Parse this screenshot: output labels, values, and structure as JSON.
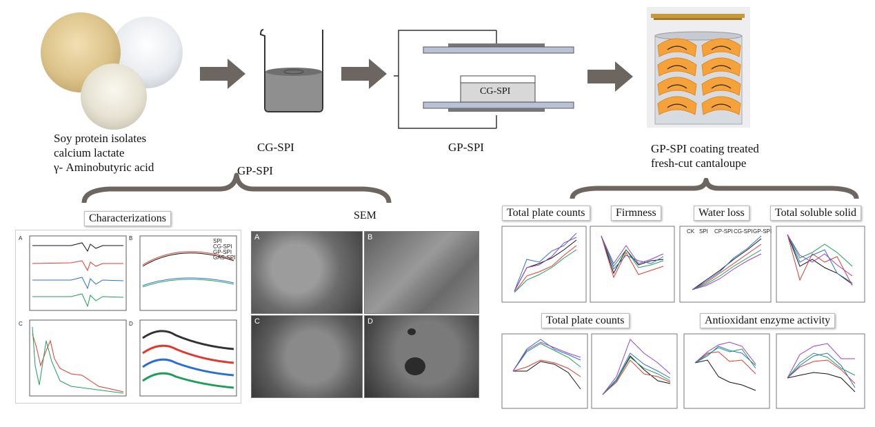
{
  "stage1": {
    "lines": [
      "Soy protein isolates",
      "calcium lactate",
      "γ- Aminobutyric acid"
    ]
  },
  "stage2": {
    "label": "CG-SPI",
    "group_label": "GP-SPI"
  },
  "stage3": {
    "label": "GP-SPI",
    "mold_label": "CG-SPI"
  },
  "stage4": {
    "lines": [
      "GP-SPI coating treated",
      "fresh-cut cantaloupe"
    ]
  },
  "characterizations": {
    "title": "Characterizations",
    "panels": [
      "A",
      "B",
      "C",
      "D"
    ],
    "legend": [
      "SPI",
      "CG-SPI",
      "GP-SPI",
      "GAS-SPI"
    ]
  },
  "sem": {
    "title": "SEM",
    "panels": [
      "A",
      "B",
      "C",
      "D"
    ]
  },
  "properties": {
    "row1": [
      "Total plate counts",
      "Firmness",
      "Water loss",
      "Total soluble solid"
    ],
    "row2": [
      "Total plate counts",
      "Antioxidant enzyme activity"
    ],
    "legend": [
      "CK",
      "SPI",
      "CP-SPI",
      "CG-SPI",
      "GP-SPI"
    ]
  },
  "colors": {
    "arrow": "#6d6560",
    "brace": "#6d6560",
    "black": "#111111",
    "red": "#e03a2e",
    "blue": "#2a6fd6",
    "green": "#1e9e5a",
    "purple": "#9a40c8",
    "cantaloupe": "#f6a23a"
  }
}
